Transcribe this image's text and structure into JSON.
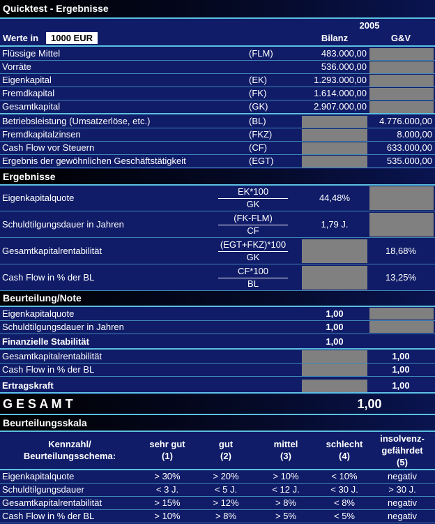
{
  "header": {
    "title": "Quicktest - Ergebnisse",
    "year": "2005",
    "unit_label": "Werte in",
    "unit": "1000 EUR",
    "col_bilanz": "Bilanz",
    "col_guv": "G&V"
  },
  "inputs": [
    {
      "label": "Flüssige Mittel",
      "abbr": "(FLM)",
      "bilanz": "483.000,00"
    },
    {
      "label": "Vorräte",
      "bilanz": "536.000,00"
    },
    {
      "label": "Eigenkapital",
      "abbr": "(EK)",
      "bilanz": "1.293.000,00"
    },
    {
      "label": "Fremdkapital",
      "abbr": "(FK)",
      "bilanz": "1.614.000,00"
    },
    {
      "label": "Gesamtkapital",
      "abbr": "(GK)",
      "bilanz": "2.907.000,00"
    },
    {
      "label": "Betriebsleistung (Umsatzerlöse, etc.)",
      "abbr": "(BL)",
      "guv": "4.776.000,00"
    },
    {
      "label": "Fremdkapitalzinsen",
      "abbr": "(FKZ)",
      "guv": "8.000,00"
    },
    {
      "label": "Cash Flow vor Steuern",
      "abbr": "(CF)",
      "guv": "633.000,00"
    },
    {
      "label": "Ergebnis der gewöhnlichen Geschäftstätigkeit",
      "abbr": "(EGT)",
      "guv": "535.000,00"
    }
  ],
  "ergebnisse": {
    "title": "Ergebnisse",
    "rows": [
      {
        "label": "Eigenkapitalquote",
        "numerator": "EK*100",
        "denominator": "GK",
        "bilanz": "44,48%"
      },
      {
        "label": "Schuldtilgungsdauer in Jahren",
        "numerator": "(FK-FLM)",
        "denominator": "CF",
        "bilanz": "1,79 J."
      },
      {
        "label": "Gesamtkapitalrentabilität",
        "numerator": "(EGT+FKZ)*100",
        "denominator": "GK",
        "guv": "18,68%"
      },
      {
        "label": "Cash Flow in % der BL",
        "numerator": "CF*100",
        "denominator": "BL",
        "guv": "13,25%"
      }
    ]
  },
  "beurteilung": {
    "title": "Beurteilung/Note",
    "rows": [
      {
        "label": "Eigenkapitalquote",
        "bilanz": "1,00"
      },
      {
        "label": "Schuldtilgungsdauer in Jahren",
        "bilanz": "1,00"
      },
      {
        "label": "Finanzielle Stabilität",
        "bilanz": "1,00",
        "bold": true
      },
      {
        "label": "Gesamtkapitalrentabilität",
        "guv": "1,00"
      },
      {
        "label": "Cash Flow in % der BL",
        "guv": "1,00"
      },
      {
        "label": "Ertragskraft",
        "guv": "1,00",
        "bold": true
      }
    ]
  },
  "gesamt": {
    "label": "G E S A M T",
    "value": "1,00"
  },
  "skala": {
    "title": "Beurteilungsskala",
    "header": [
      [
        "Kennzahl/",
        "Beurteilungsschema:"
      ],
      [
        "sehr gut",
        "(1)"
      ],
      [
        "gut",
        "(2)"
      ],
      [
        "mittel",
        "(3)"
      ],
      [
        "schlecht",
        "(4)"
      ],
      [
        "insolvenz-",
        "gefährdet",
        "(5)"
      ]
    ],
    "rows": [
      [
        "Eigenkapitalquote",
        "> 30%",
        "> 20%",
        "> 10%",
        "< 10%",
        "negativ"
      ],
      [
        "Schuldtilgungsdauer",
        "< 3 J.",
        "< 5 J.",
        "< 12 J.",
        "< 30 J.",
        "> 30 J."
      ],
      [
        "Gesamtkapitalrentabilität",
        "> 15%",
        "> 12%",
        "> 8%",
        "< 8%",
        "negativ"
      ],
      [
        "Cash Flow in % der BL",
        "> 10%",
        "> 8%",
        "> 5%",
        "< 5%",
        "negativ"
      ]
    ]
  }
}
